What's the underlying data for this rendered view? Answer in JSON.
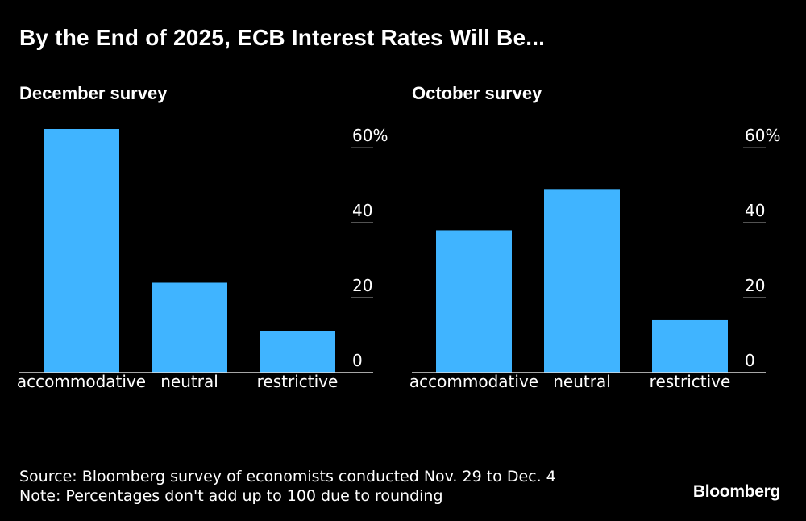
{
  "title": "By the End of 2025, ECB Interest Rates Will Be...",
  "chart_data": [
    {
      "type": "bar",
      "title": "December survey",
      "categories": [
        "accommodative",
        "neutral",
        "restrictive"
      ],
      "values": [
        65,
        24,
        11
      ],
      "ylim": [
        0,
        65
      ],
      "yticks": [
        0,
        20,
        40,
        60
      ],
      "ytick_labels": [
        "0",
        "20",
        "40",
        "60%"
      ],
      "axis_position": "right",
      "grid": false
    },
    {
      "type": "bar",
      "title": "October survey",
      "categories": [
        "accommodative",
        "neutral",
        "restrictive"
      ],
      "values": [
        38,
        49,
        14
      ],
      "ylim": [
        0,
        65
      ],
      "yticks": [
        0,
        20,
        40,
        60
      ],
      "ytick_labels": [
        "0",
        "20",
        "40",
        "60%"
      ],
      "axis_position": "right",
      "grid": false
    }
  ],
  "source": "Source: Bloomberg survey of economists conducted Nov. 29 to Dec. 4",
  "note": "Note: Percentages don't add up to 100 due to rounding",
  "brand": "Bloomberg",
  "colors": {
    "bar": "#40b4ff",
    "background": "#000000",
    "text": "#ffffff",
    "axis": "#dddddd"
  }
}
